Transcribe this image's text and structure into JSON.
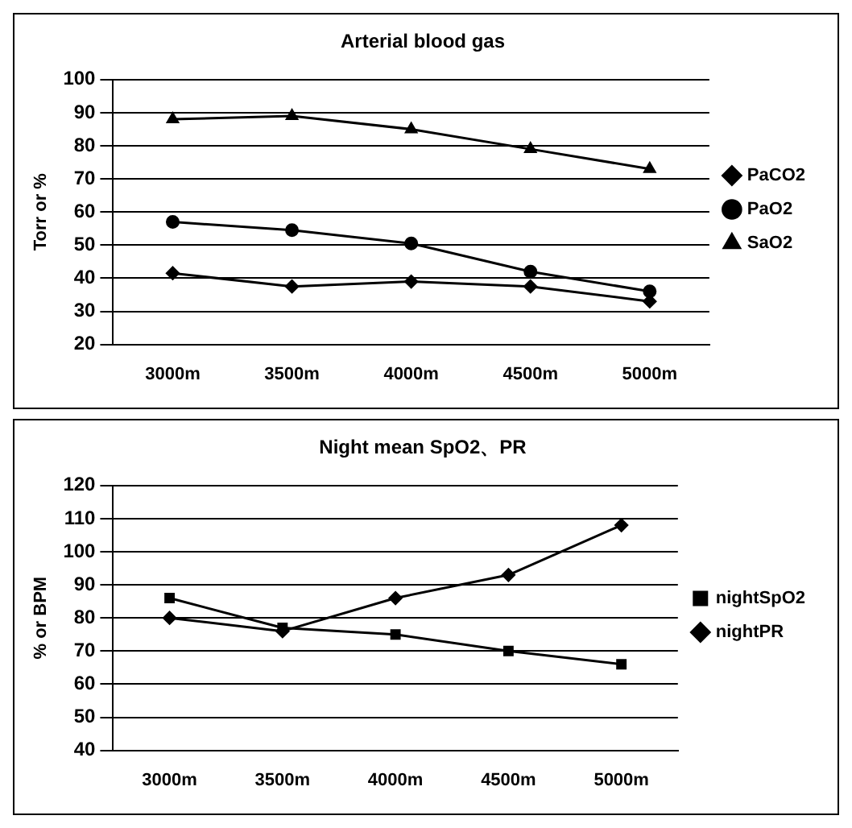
{
  "chart_data": [
    {
      "type": "line",
      "title": "Arterial blood gas",
      "ylabel": "Torr or %",
      "categories": [
        "3000m",
        "3500m",
        "4000m",
        "4500m",
        "5000m"
      ],
      "ylim": [
        20,
        100
      ],
      "yticks": [
        20,
        30,
        40,
        50,
        60,
        70,
        80,
        90,
        100
      ],
      "grid": "y",
      "legend": "right",
      "series": [
        {
          "name": "PaCO2",
          "color": "#000000",
          "marker": "diamond",
          "values": [
            41.5,
            37.5,
            39,
            37.5,
            33
          ]
        },
        {
          "name": "PaO2",
          "color": "#000000",
          "marker": "circle",
          "values": [
            57,
            54.5,
            50.5,
            42,
            36
          ]
        },
        {
          "name": "SaO2",
          "color": "#000000",
          "marker": "triangle",
          "values": [
            88,
            89,
            85,
            79,
            73
          ]
        }
      ]
    },
    {
      "type": "line",
      "title": "Night mean SpO2、PR",
      "ylabel": "% or BPM",
      "categories": [
        "3000m",
        "3500m",
        "4000m",
        "4500m",
        "5000m"
      ],
      "ylim": [
        40,
        120
      ],
      "yticks": [
        40,
        50,
        60,
        70,
        80,
        90,
        100,
        110,
        120
      ],
      "grid": "y",
      "legend": "right",
      "series": [
        {
          "name": "nightSpO2",
          "color": "#000000",
          "marker": "square",
          "values": [
            86,
            77,
            75,
            70,
            66
          ]
        },
        {
          "name": "nightPR",
          "color": "#000000",
          "marker": "diamond",
          "values": [
            80,
            76,
            86,
            93,
            108
          ]
        }
      ]
    }
  ]
}
